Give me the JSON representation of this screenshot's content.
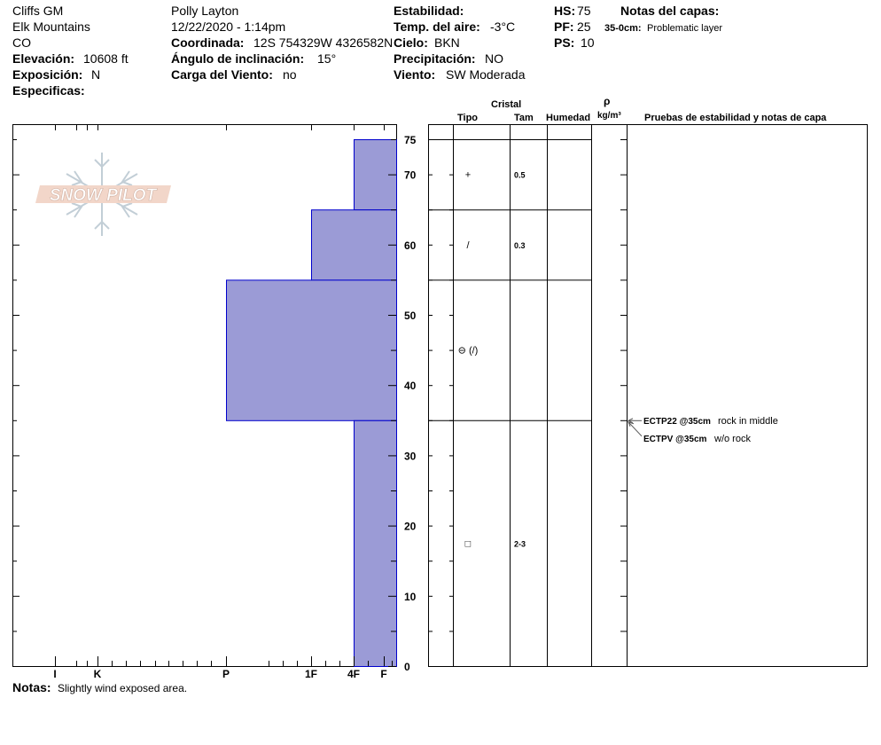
{
  "header": {
    "location": "Cliffs GM",
    "range": "Elk Mountains",
    "state": "CO",
    "elevation_label": "Elevación:",
    "elevation_value": "10608 ft",
    "aspect_label": "Exposición:",
    "aspect_value": "N",
    "specifics_label": "Especificas:",
    "observer": "Polly Layton",
    "datetime": "12/22/2020 - 1:14pm",
    "coord_label": "Coordinada:",
    "coord_value": "12S 754329W 4326582N",
    "slope_label": "Ángulo de inclinación:",
    "slope_value": "15°",
    "wind_load_label": "Carga del Viento:",
    "wind_load_value": "no",
    "stability_label": "Estabilidad:",
    "air_temp_label": "Temp. del aire:",
    "air_temp_value": "-3°C",
    "sky_label": "Cielo:",
    "sky_value": "BKN",
    "precip_label": "Precipitación:",
    "precip_value": "NO",
    "wind_label": "Viento:",
    "wind_value": "SW Moderada",
    "hs_label": "HS:",
    "hs_value": "75",
    "pf_label": "PF:",
    "pf_value": "25",
    "ps_label": "PS:",
    "ps_value": "10",
    "layer_notes_title": "Notas del capas:",
    "layer_note_depth": "35-0cm:",
    "layer_note_text": "Problematic layer"
  },
  "logo_text": "SNOW PILOT",
  "table_headers": {
    "cristal": "Cristal",
    "tipo": "Tipo",
    "tam": "Tam",
    "humedad": "Humedad",
    "rho": "ρ",
    "density_unit": "kg/m³",
    "tests": "Pruebas de estabilidad y notas de capa"
  },
  "notes_label": "Notas:",
  "notes_text": "Slightly wind exposed area.",
  "colors": {
    "hardness_fill": "#9b9bd6",
    "hardness_stroke": "#0000cc"
  },
  "chart_data": {
    "type": "bar",
    "title": "",
    "ylabel": "",
    "ylim": [
      0,
      75
    ],
    "y_ticks": [
      0,
      10,
      20,
      30,
      40,
      50,
      60,
      70,
      75
    ],
    "hardness_scale": [
      "I",
      "K",
      "P",
      "1F",
      "4F",
      "F"
    ],
    "hardness_scale_order": [
      "F",
      "4F",
      "1F",
      "P",
      "K",
      "I"
    ],
    "layers": [
      {
        "bottom": 65,
        "top": 75,
        "hardness": "4F",
        "grain": "+",
        "size": "0.5"
      },
      {
        "bottom": 55,
        "top": 65,
        "hardness": "1F",
        "grain": "/",
        "size": "0.3"
      },
      {
        "bottom": 35,
        "top": 55,
        "hardness": "P",
        "grain": "⊖ (/)",
        "size": ""
      },
      {
        "bottom": 0,
        "top": 35,
        "hardness": "4F",
        "grain": "□",
        "size": "2-3"
      }
    ],
    "tests": [
      {
        "depth": 35,
        "code": "ECTP22 @35cm",
        "note": "rock in middle"
      },
      {
        "depth": 35,
        "code": "ECTPV @35cm",
        "note": "w/o rock"
      }
    ]
  }
}
